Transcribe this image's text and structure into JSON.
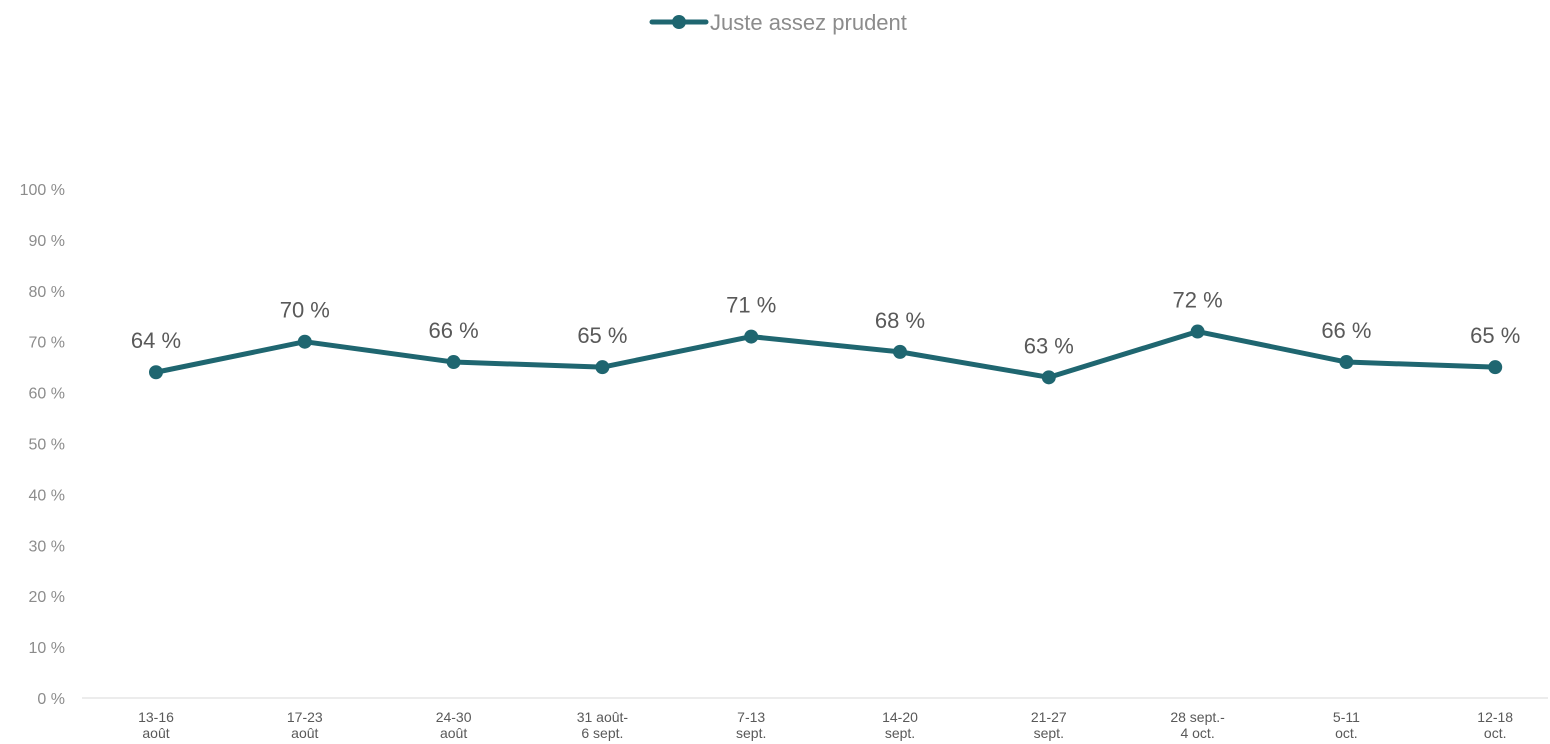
{
  "chart_data": {
    "type": "line",
    "title": "",
    "xlabel": "",
    "ylabel": "",
    "ylim": [
      0,
      100
    ],
    "yticks": [
      "0 %",
      "10 %",
      "20 %",
      "30 %",
      "40 %",
      "50 %",
      "60 %",
      "70 %",
      "80 %",
      "90 %",
      "100 %"
    ],
    "grid": false,
    "legend_position": "top-center",
    "categories": [
      [
        "13-16",
        "août"
      ],
      [
        "17-23",
        "août"
      ],
      [
        "24-30",
        "août"
      ],
      [
        "31 août-",
        "6 sept."
      ],
      [
        "7-13",
        "sept."
      ],
      [
        "14-20",
        "sept."
      ],
      [
        "21-27",
        "sept."
      ],
      [
        "28 sept.-",
        "4 oct."
      ],
      [
        "5-11",
        "oct."
      ],
      [
        "12-18",
        "oct."
      ]
    ],
    "series": [
      {
        "name": "Juste assez prudent",
        "color": "#1f6670",
        "values": [
          64,
          70,
          66,
          65,
          71,
          68,
          63,
          72,
          66,
          65
        ],
        "data_labels": [
          "64 %",
          "70 %",
          "66 %",
          "65 %",
          "71 %",
          "68 %",
          "63 %",
          "72 %",
          "66 %",
          "65 %"
        ]
      }
    ]
  }
}
